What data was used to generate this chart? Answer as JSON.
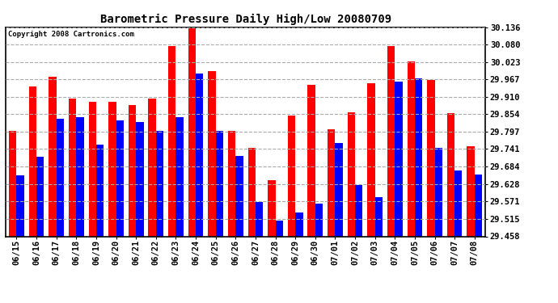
{
  "title": "Barometric Pressure Daily High/Low 20080709",
  "copyright": "Copyright 2008 Cartronics.com",
  "dates": [
    "06/15",
    "06/16",
    "06/17",
    "06/18",
    "06/19",
    "06/20",
    "06/21",
    "06/22",
    "06/23",
    "06/24",
    "06/25",
    "06/26",
    "06/27",
    "06/28",
    "06/29",
    "06/30",
    "07/01",
    "07/02",
    "07/03",
    "07/04",
    "07/05",
    "07/06",
    "07/07",
    "07/08"
  ],
  "highs": [
    29.8,
    29.945,
    29.975,
    29.905,
    29.895,
    29.895,
    29.885,
    29.905,
    30.075,
    30.133,
    29.995,
    29.8,
    29.745,
    29.64,
    29.85,
    29.95,
    29.805,
    29.86,
    29.955,
    30.075,
    30.025,
    29.965,
    29.858,
    29.75
  ],
  "lows": [
    29.655,
    29.715,
    29.84,
    29.845,
    29.755,
    29.835,
    29.83,
    29.8,
    29.845,
    29.985,
    29.8,
    29.72,
    29.57,
    29.51,
    29.535,
    29.565,
    29.76,
    29.625,
    29.585,
    29.96,
    29.97,
    29.745,
    29.672,
    29.658
  ],
  "high_color": "#ff0000",
  "low_color": "#0000ff",
  "bg_color": "#ffffff",
  "grid_color": "#aaaaaa",
  "ymin": 29.458,
  "ymax": 30.136,
  "yticks": [
    29.458,
    29.515,
    29.571,
    29.628,
    29.684,
    29.741,
    29.797,
    29.854,
    29.91,
    29.967,
    30.023,
    30.08,
    30.136
  ]
}
